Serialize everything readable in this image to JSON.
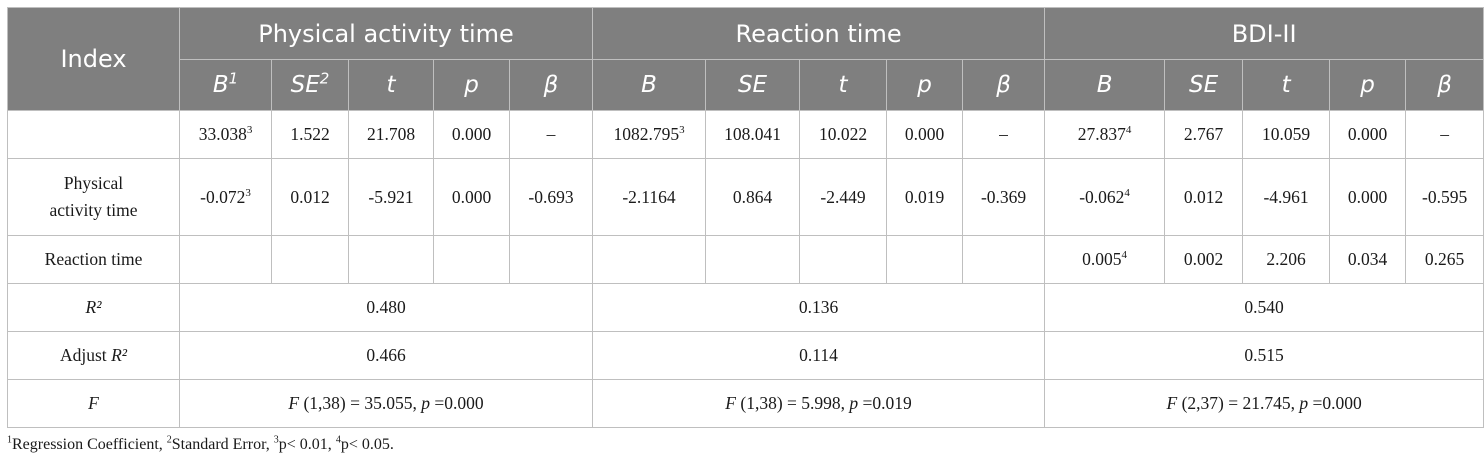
{
  "headers": {
    "index": "Index",
    "groups": [
      "Physical activity time",
      "Reaction time",
      "BDI-II"
    ],
    "sub": [
      {
        "label": "B",
        "sup": "1"
      },
      {
        "label": "SE",
        "sup": "2"
      },
      {
        "label": "t",
        "sup": ""
      },
      {
        "label": "p",
        "sup": ""
      },
      {
        "label": "β",
        "sup": ""
      },
      {
        "label": "B",
        "sup": ""
      },
      {
        "label": "SE",
        "sup": ""
      },
      {
        "label": "t",
        "sup": ""
      },
      {
        "label": "p",
        "sup": ""
      },
      {
        "label": "β",
        "sup": ""
      },
      {
        "label": "B",
        "sup": ""
      },
      {
        "label": "SE",
        "sup": ""
      },
      {
        "label": "t",
        "sup": ""
      },
      {
        "label": "p",
        "sup": ""
      },
      {
        "label": "β",
        "sup": ""
      }
    ]
  },
  "rows": [
    {
      "label": "",
      "cells": [
        {
          "v": "33.038",
          "sup": "3"
        },
        {
          "v": "1.522"
        },
        {
          "v": "21.708"
        },
        {
          "v": "0.000"
        },
        {
          "v": "–"
        },
        {
          "v": "1082.795",
          "sup": "3"
        },
        {
          "v": "108.041"
        },
        {
          "v": "10.022"
        },
        {
          "v": "0.000"
        },
        {
          "v": "–"
        },
        {
          "v": "27.837",
          "sup": "4"
        },
        {
          "v": "2.767"
        },
        {
          "v": "10.059"
        },
        {
          "v": "0.000"
        },
        {
          "v": "–"
        }
      ]
    },
    {
      "label_lines": [
        "Physical",
        "activity time"
      ],
      "cells": [
        {
          "v": "-0.072",
          "sup": "3"
        },
        {
          "v": "0.012"
        },
        {
          "v": "-5.921"
        },
        {
          "v": "0.000"
        },
        {
          "v": "-0.693"
        },
        {
          "v": "-2.1164"
        },
        {
          "v": "0.864"
        },
        {
          "v": "-2.449"
        },
        {
          "v": "0.019"
        },
        {
          "v": "-0.369"
        },
        {
          "v": "-0.062",
          "sup": "4"
        },
        {
          "v": "0.012"
        },
        {
          "v": "-4.961"
        },
        {
          "v": "0.000"
        },
        {
          "v": "-0.595"
        }
      ]
    },
    {
      "label": "Reaction time",
      "cells": [
        {
          "v": ""
        },
        {
          "v": ""
        },
        {
          "v": ""
        },
        {
          "v": ""
        },
        {
          "v": ""
        },
        {
          "v": ""
        },
        {
          "v": ""
        },
        {
          "v": ""
        },
        {
          "v": ""
        },
        {
          "v": ""
        },
        {
          "v": "0.005",
          "sup": "4"
        },
        {
          "v": "0.002"
        },
        {
          "v": "2.206"
        },
        {
          "v": "0.034"
        },
        {
          "v": "0.265"
        }
      ]
    }
  ],
  "r2": {
    "label": "R²",
    "values": [
      "0.480",
      "0.136",
      "0.540"
    ]
  },
  "adj_r2": {
    "label": "Adjust R²",
    "values": [
      "0.466",
      "0.114",
      "0.515"
    ]
  },
  "f": {
    "label": "F",
    "values": [
      {
        "df": "(1,38) = 35.055, ",
        "p": " =0.000"
      },
      {
        "df": "(1,38) = 5.998, ",
        "p": " =0.019"
      },
      {
        "df": "(2,37) = 21.745, ",
        "p": " =0.000"
      }
    ]
  },
  "footnote": [
    {
      "sup": "1",
      "text": "Regression Coefficient, "
    },
    {
      "sup": "2",
      "text": "Standard Error, "
    },
    {
      "sup": "3",
      "text": "p< 0.01, "
    },
    {
      "sup": "4",
      "text": "p< 0.05."
    }
  ]
}
